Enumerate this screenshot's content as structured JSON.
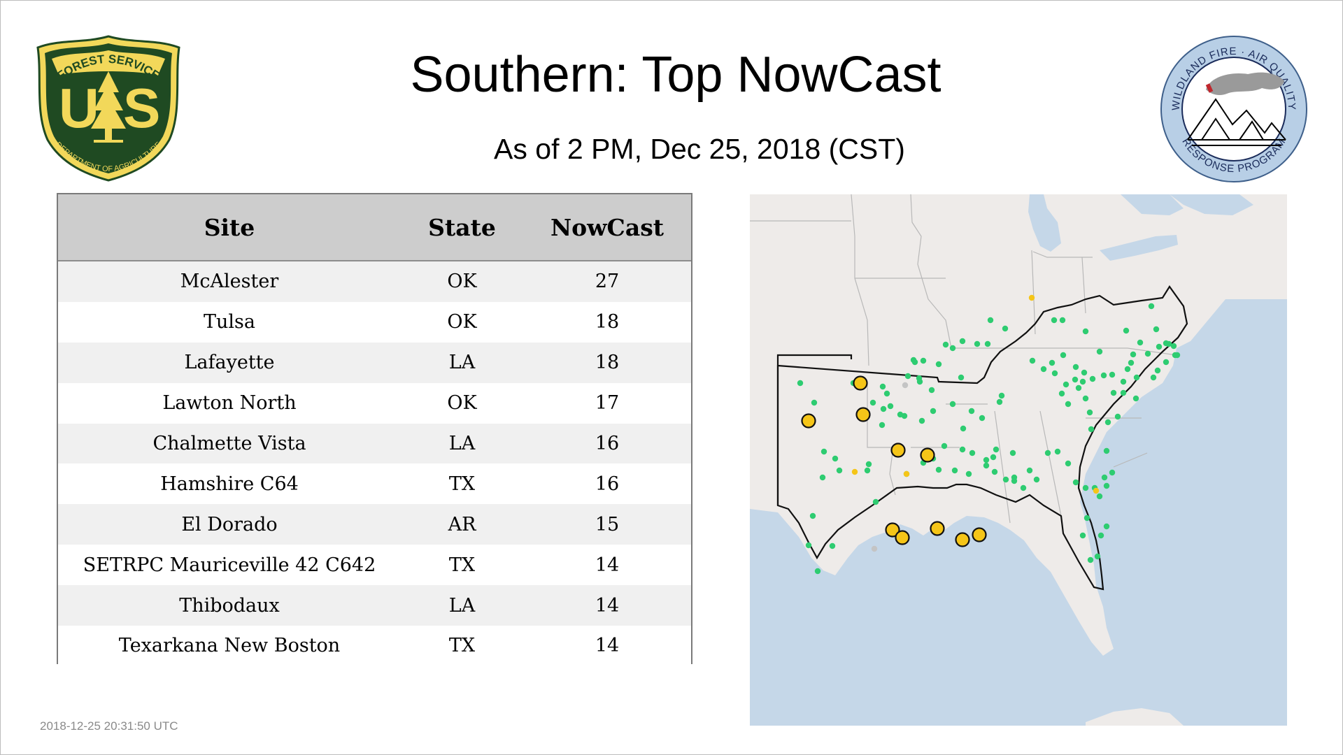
{
  "header": {
    "title": "Southern: Top NowCast",
    "subtitle": "As of  2 PM, Dec 25, 2018 (CST)"
  },
  "logos": {
    "usfs": {
      "top_text": "FOREST SERVICE",
      "bottom_text": "DEPARTMENT OF AGRICULTURE",
      "letters": "US",
      "colors": {
        "green": "#1f4a22",
        "gold": "#f2d85a"
      }
    },
    "wfaq": {
      "top_text": "WILDLAND FIRE · AIR QUALITY",
      "bottom_text": "RESPONSE PROGRAM",
      "colors": {
        "ring": "#b8cfe6",
        "text": "#1a2b5a"
      }
    }
  },
  "table": {
    "columns": [
      "Site",
      "State",
      "NowCast"
    ],
    "rows": [
      {
        "site": "McAlester",
        "state": "OK",
        "nowcast": "27"
      },
      {
        "site": "Tulsa",
        "state": "OK",
        "nowcast": "18"
      },
      {
        "site": "Lafayette",
        "state": "LA",
        "nowcast": "18"
      },
      {
        "site": "Lawton North",
        "state": "OK",
        "nowcast": "17"
      },
      {
        "site": "Chalmette Vista",
        "state": "LA",
        "nowcast": "16"
      },
      {
        "site": "Hamshire C64",
        "state": "TX",
        "nowcast": "16"
      },
      {
        "site": "El Dorado",
        "state": "AR",
        "nowcast": "15"
      },
      {
        "site": "SETRPC Mauriceville 42 C642",
        "state": "TX",
        "nowcast": "14"
      },
      {
        "site": "Thibodaux",
        "state": "LA",
        "nowcast": "14"
      },
      {
        "site": "Texarkana New Boston",
        "state": "TX",
        "nowcast": "14"
      }
    ]
  },
  "map": {
    "colors": {
      "land": "#eeebe9",
      "water": "#c5d7e8",
      "good": "#2ecc71",
      "moderate": "#f5c518",
      "no_data": "#c4c4c4",
      "border": "#111111"
    }
  },
  "footer": {
    "timestamp": "2018-12-25 20:31:50 UTC"
  }
}
